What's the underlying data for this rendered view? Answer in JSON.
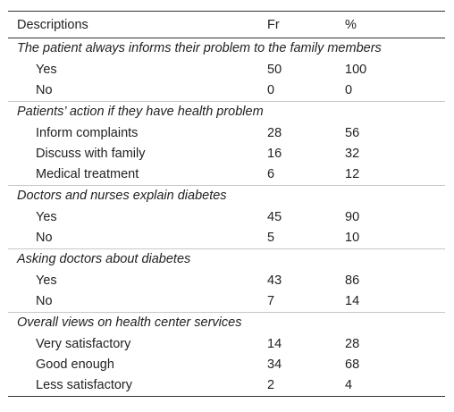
{
  "table": {
    "headers": [
      "Descriptions",
      "Fr",
      "%"
    ],
    "groups": [
      {
        "title": "The patient always informs their problem to the family members",
        "rows": [
          {
            "label": "Yes",
            "fr": "50",
            "pct": "100"
          },
          {
            "label": "No",
            "fr": "0",
            "pct": "0"
          }
        ]
      },
      {
        "title": "Patients’ action if they have health problem",
        "rows": [
          {
            "label": "Inform complaints",
            "fr": "28",
            "pct": "56"
          },
          {
            "label": "Discuss with family",
            "fr": "16",
            "pct": "32"
          },
          {
            "label": "Medical treatment",
            "fr": "6",
            "pct": "12"
          }
        ]
      },
      {
        "title": "Doctors and nurses explain diabetes",
        "rows": [
          {
            "label": "Yes",
            "fr": "45",
            "pct": "90"
          },
          {
            "label": "No",
            "fr": "5",
            "pct": "10"
          }
        ]
      },
      {
        "title": "Asking doctors about diabetes",
        "rows": [
          {
            "label": "Yes",
            "fr": "43",
            "pct": "86"
          },
          {
            "label": "No",
            "fr": "7",
            "pct": "14"
          }
        ]
      },
      {
        "title": "Overall views on health center services",
        "rows": [
          {
            "label": "Very satisfactory",
            "fr": "14",
            "pct": "28"
          },
          {
            "label": "Good enough",
            "fr": "34",
            "pct": "68"
          },
          {
            "label": "Less satisfactory",
            "fr": "2",
            "pct": "4"
          }
        ]
      }
    ]
  }
}
